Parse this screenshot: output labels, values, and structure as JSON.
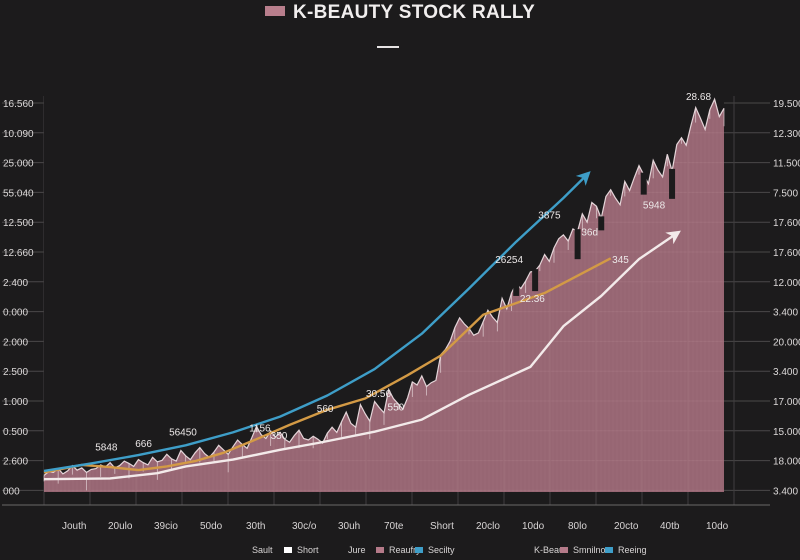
{
  "chart_data": {
    "type": "area",
    "title": "K-BEAUTY STOCK RALLY",
    "left_axis_labels": [
      "16.560",
      "10.090",
      "25.000",
      "55.040",
      "12.500",
      "12.660",
      "2.400",
      "0.000",
      "2.000",
      "2.500",
      "1.000",
      "0.500",
      "2.600",
      "000"
    ],
    "right_axis_labels": [
      "19.500",
      "12.300",
      "11.500",
      "7.500",
      "17.600",
      "17.600",
      "12.000",
      "3.400",
      "20.000",
      "3.400",
      "17.000",
      "15.000",
      "18.000",
      "3.400"
    ],
    "x_tick_labels": [
      "Jouth",
      "20ulo",
      "39cio",
      "50do",
      "30th",
      "30c/o",
      "30uh",
      "70te",
      "Short",
      "20clo",
      "10do",
      "80lo",
      "20cto",
      "40tb",
      "10do"
    ],
    "series": [
      {
        "name": "Price area",
        "color": "#b57a89",
        "values": [
          2.2,
          2.7,
          2.6,
          3.1,
          2.4,
          2.8,
          3.5,
          2.9,
          3.2,
          2.6,
          3.0,
          3.1,
          3.6,
          3.3,
          3.9,
          3.2,
          3.5,
          4.1,
          3.8,
          3.4,
          4.3,
          3.9,
          3.6,
          4.6,
          4.0,
          4.2,
          5.0,
          4.4,
          4.1,
          5.5,
          4.8,
          4.3,
          5.2,
          5.9,
          5.1,
          4.6,
          5.3,
          6.2,
          5.6,
          5.0,
          6.0,
          6.9,
          6.3,
          5.8,
          7.2,
          8.7,
          7.6,
          7.1,
          8.1,
          7.3,
          7.9,
          7.0,
          6.6,
          7.5,
          8.2,
          7.1,
          6.9,
          7.4,
          7.0,
          6.5,
          7.8,
          8.6,
          7.9,
          9.3,
          10.6,
          9.1,
          8.6,
          11.6,
          10.4,
          9.4,
          12.0,
          11.2,
          10.5,
          13.6,
          12.4,
          11.7,
          11.0,
          12.5,
          14.6,
          14.2,
          15.4,
          14.0,
          14.5,
          14.8,
          18.2,
          18.9,
          20.0,
          21.8,
          23.1,
          22.3,
          21.7,
          20.8,
          21.1,
          22.6,
          24.1,
          23.2,
          22.5,
          25.7,
          24.3,
          26.4,
          27.6,
          27.0,
          28.0,
          29.2,
          29.3,
          30.1,
          31.5,
          30.6,
          32.4,
          33.6,
          34.1,
          33.3,
          34.9,
          34.6,
          36.9,
          35.8,
          38.4,
          37.9,
          36.3,
          39.2,
          40.1,
          39.0,
          38.1,
          41.2,
          40.0,
          41.7,
          43.3,
          42.1,
          40.9,
          44.0,
          42.7,
          41.8,
          44.8,
          42.6,
          46.1,
          47.0,
          46.0,
          48.6,
          51.0,
          49.6,
          48.1,
          50.7,
          52.1,
          49.8,
          50.9
        ]
      },
      {
        "name": "Orange trend",
        "color": "#d39a45",
        "x": [
          0,
          8,
          14,
          20,
          26,
          32,
          38,
          45,
          52,
          60,
          68,
          77,
          84,
          93,
          106,
          120
        ],
        "values": [
          2.6,
          3.6,
          3.3,
          2.9,
          3.4,
          4.1,
          5.2,
          7.0,
          8.9,
          10.9,
          12.4,
          15.5,
          18.1,
          23.5,
          26.4,
          31.0
        ]
      },
      {
        "name": "Blue trend",
        "color": "#3e9ec8",
        "x": [
          0,
          10,
          20,
          30,
          40,
          50,
          60,
          70,
          80,
          90,
          100,
          110,
          115
        ],
        "values": [
          2.8,
          3.8,
          4.9,
          6.2,
          7.9,
          10.0,
          12.8,
          16.3,
          21.0,
          27.0,
          33.2,
          39.0,
          42.1
        ]
      },
      {
        "name": "White trend",
        "color": "#f3eaea",
        "x": [
          0,
          14,
          24,
          30,
          40,
          50,
          58,
          70,
          80,
          90,
          103,
          110,
          118,
          126,
          134
        ],
        "values": [
          1.7,
          1.8,
          2.5,
          3.4,
          4.3,
          5.6,
          6.5,
          8.0,
          9.6,
          12.9,
          16.6,
          22.0,
          26.0,
          30.9,
          34.3
        ]
      }
    ],
    "annotations": [
      "5848",
      "666",
      "56450",
      "1156",
      "350",
      "560",
      "30.56",
      "550",
      "26254",
      "22.36",
      "3875",
      "36d",
      "345",
      "5948",
      "28.68"
    ],
    "legend": {
      "position": "bottom",
      "items": [
        "Sault",
        "Short",
        "Jure",
        "Reaufry",
        "Secilty",
        "K-Beaut",
        "Smnilno",
        "Reeing"
      ],
      "colors": [
        "#1c1b1c",
        "#ffffff",
        "#1c1b1c",
        "#b57a89",
        "#3e9ec8",
        "#1c1b1c",
        "#b57a89",
        "#3e9ec8"
      ]
    },
    "ylim": [
      0,
      52
    ]
  }
}
